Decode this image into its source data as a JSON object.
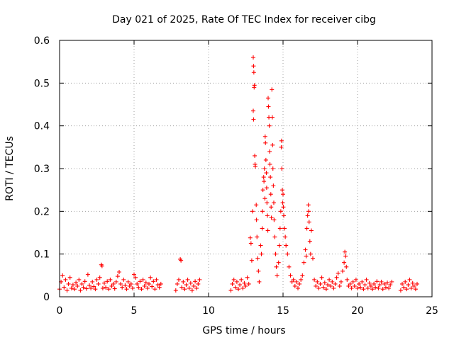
{
  "chart_data": {
    "type": "scatter",
    "title": "Day 021 of 2025, Rate Of TEC Index for receiver cibg",
    "xlabel": "GPS time / hours",
    "ylabel": "ROTI / TECUs",
    "xlim": [
      0,
      25
    ],
    "ylim": [
      0,
      0.6
    ],
    "xticks": [
      "0",
      "5",
      "10",
      "15",
      "20",
      "25"
    ],
    "yticks": [
      "0",
      "0.1",
      "0.2",
      "0.3",
      "0.4",
      "0.5",
      "0.6"
    ],
    "grid": true,
    "series": [
      {
        "name": "ROTI",
        "color": "#ff0000",
        "marker": "plus",
        "points": [
          [
            0.0,
            0.018
          ],
          [
            0.1,
            0.035
          ],
          [
            0.2,
            0.05
          ],
          [
            0.3,
            0.022
          ],
          [
            0.4,
            0.04
          ],
          [
            0.5,
            0.015
          ],
          [
            0.6,
            0.03
          ],
          [
            0.7,
            0.045
          ],
          [
            0.8,
            0.02
          ],
          [
            0.9,
            0.028
          ],
          [
            1.0,
            0.018
          ],
          [
            1.1,
            0.033
          ],
          [
            1.2,
            0.025
          ],
          [
            1.3,
            0.04
          ],
          [
            1.4,
            0.015
          ],
          [
            1.5,
            0.03
          ],
          [
            1.6,
            0.022
          ],
          [
            1.7,
            0.036
          ],
          [
            1.8,
            0.019
          ],
          [
            1.9,
            0.052
          ],
          [
            2.0,
            0.027
          ],
          [
            2.1,
            0.02
          ],
          [
            2.2,
            0.035
          ],
          [
            2.3,
            0.024
          ],
          [
            2.4,
            0.018
          ],
          [
            2.5,
            0.04
          ],
          [
            2.6,
            0.03
          ],
          [
            2.7,
            0.045
          ],
          [
            2.8,
            0.075
          ],
          [
            2.85,
            0.072
          ],
          [
            2.9,
            0.02
          ],
          [
            3.0,
            0.032
          ],
          [
            3.1,
            0.022
          ],
          [
            3.2,
            0.036
          ],
          [
            3.3,
            0.018
          ],
          [
            3.4,
            0.04
          ],
          [
            3.5,
            0.025
          ],
          [
            3.6,
            0.03
          ],
          [
            3.7,
            0.019
          ],
          [
            3.8,
            0.035
          ],
          [
            3.9,
            0.048
          ],
          [
            4.0,
            0.058
          ],
          [
            4.1,
            0.03
          ],
          [
            4.2,
            0.022
          ],
          [
            4.3,
            0.04
          ],
          [
            4.4,
            0.027
          ],
          [
            4.5,
            0.018
          ],
          [
            4.6,
            0.035
          ],
          [
            4.7,
            0.025
          ],
          [
            4.8,
            0.03
          ],
          [
            4.9,
            0.02
          ],
          [
            5.0,
            0.052
          ],
          [
            5.1,
            0.045
          ],
          [
            5.2,
            0.03
          ],
          [
            5.3,
            0.022
          ],
          [
            5.4,
            0.036
          ],
          [
            5.5,
            0.018
          ],
          [
            5.6,
            0.04
          ],
          [
            5.7,
            0.025
          ],
          [
            5.8,
            0.033
          ],
          [
            5.9,
            0.02
          ],
          [
            6.0,
            0.03
          ],
          [
            6.1,
            0.045
          ],
          [
            6.2,
            0.024
          ],
          [
            6.3,
            0.036
          ],
          [
            6.4,
            0.018
          ],
          [
            6.5,
            0.04
          ],
          [
            6.6,
            0.028
          ],
          [
            6.7,
            0.022
          ],
          [
            6.8,
            0.03
          ],
          [
            7.8,
            0.015
          ],
          [
            7.9,
            0.03
          ],
          [
            8.0,
            0.04
          ],
          [
            8.1,
            0.088
          ],
          [
            8.15,
            0.085
          ],
          [
            8.2,
            0.022
          ],
          [
            8.3,
            0.035
          ],
          [
            8.4,
            0.018
          ],
          [
            8.5,
            0.028
          ],
          [
            8.6,
            0.04
          ],
          [
            8.7,
            0.02
          ],
          [
            8.8,
            0.032
          ],
          [
            8.9,
            0.015
          ],
          [
            9.0,
            0.025
          ],
          [
            9.1,
            0.036
          ],
          [
            9.2,
            0.02
          ],
          [
            9.3,
            0.03
          ],
          [
            9.4,
            0.04
          ],
          [
            11.5,
            0.015
          ],
          [
            11.6,
            0.03
          ],
          [
            11.7,
            0.04
          ],
          [
            11.8,
            0.022
          ],
          [
            11.9,
            0.035
          ],
          [
            12.0,
            0.018
          ],
          [
            12.1,
            0.028
          ],
          [
            12.2,
            0.04
          ],
          [
            12.3,
            0.02
          ],
          [
            12.4,
            0.032
          ],
          [
            12.5,
            0.025
          ],
          [
            12.6,
            0.045
          ],
          [
            12.7,
            0.03
          ],
          [
            12.8,
            0.138
          ],
          [
            12.85,
            0.125
          ],
          [
            12.9,
            0.085
          ],
          [
            12.95,
            0.2
          ],
          [
            13.0,
            0.56
          ],
          [
            13.02,
            0.54
          ],
          [
            13.04,
            0.525
          ],
          [
            13.06,
            0.49
          ],
          [
            13.08,
            0.495
          ],
          [
            13.0,
            0.435
          ],
          [
            13.02,
            0.415
          ],
          [
            13.1,
            0.33
          ],
          [
            13.12,
            0.31
          ],
          [
            13.14,
            0.305
          ],
          [
            13.2,
            0.215
          ],
          [
            13.22,
            0.18
          ],
          [
            13.25,
            0.14
          ],
          [
            13.3,
            0.09
          ],
          [
            13.35,
            0.06
          ],
          [
            13.4,
            0.035
          ],
          [
            13.5,
            0.12
          ],
          [
            13.55,
            0.1
          ],
          [
            13.6,
            0.16
          ],
          [
            13.62,
            0.2
          ],
          [
            13.65,
            0.25
          ],
          [
            13.7,
            0.28
          ],
          [
            13.72,
            0.27
          ],
          [
            13.75,
            0.3
          ],
          [
            13.78,
            0.23
          ],
          [
            13.8,
            0.375
          ],
          [
            13.82,
            0.36
          ],
          [
            13.85,
            0.32
          ],
          [
            13.88,
            0.29
          ],
          [
            13.9,
            0.255
          ],
          [
            13.92,
            0.22
          ],
          [
            13.95,
            0.19
          ],
          [
            13.98,
            0.155
          ],
          [
            14.0,
            0.465
          ],
          [
            14.02,
            0.445
          ],
          [
            14.05,
            0.42
          ],
          [
            14.08,
            0.4
          ],
          [
            14.1,
            0.34
          ],
          [
            14.12,
            0.31
          ],
          [
            14.15,
            0.28
          ],
          [
            14.18,
            0.24
          ],
          [
            14.2,
            0.21
          ],
          [
            14.22,
            0.185
          ],
          [
            14.25,
            0.485
          ],
          [
            14.28,
            0.42
          ],
          [
            14.3,
            0.355
          ],
          [
            14.32,
            0.3
          ],
          [
            14.35,
            0.26
          ],
          [
            14.38,
            0.22
          ],
          [
            14.4,
            0.18
          ],
          [
            14.45,
            0.14
          ],
          [
            14.5,
            0.1
          ],
          [
            14.55,
            0.07
          ],
          [
            14.6,
            0.05
          ],
          [
            14.7,
            0.08
          ],
          [
            14.75,
            0.12
          ],
          [
            14.8,
            0.16
          ],
          [
            14.85,
            0.2
          ],
          [
            14.88,
            0.35
          ],
          [
            14.9,
            0.365
          ],
          [
            14.92,
            0.3
          ],
          [
            14.95,
            0.25
          ],
          [
            14.98,
            0.22
          ],
          [
            15.0,
            0.24
          ],
          [
            15.02,
            0.21
          ],
          [
            15.05,
            0.19
          ],
          [
            15.1,
            0.16
          ],
          [
            15.15,
            0.14
          ],
          [
            15.2,
            0.12
          ],
          [
            15.3,
            0.1
          ],
          [
            15.4,
            0.07
          ],
          [
            15.5,
            0.05
          ],
          [
            15.6,
            0.035
          ],
          [
            15.7,
            0.04
          ],
          [
            15.8,
            0.025
          ],
          [
            15.9,
            0.035
          ],
          [
            16.0,
            0.02
          ],
          [
            16.1,
            0.03
          ],
          [
            16.2,
            0.04
          ],
          [
            16.3,
            0.05
          ],
          [
            16.4,
            0.08
          ],
          [
            16.5,
            0.11
          ],
          [
            16.55,
            0.095
          ],
          [
            16.6,
            0.16
          ],
          [
            16.65,
            0.19
          ],
          [
            16.7,
            0.215
          ],
          [
            16.72,
            0.2
          ],
          [
            16.75,
            0.175
          ],
          [
            16.8,
            0.13
          ],
          [
            16.85,
            0.1
          ],
          [
            16.9,
            0.155
          ],
          [
            17.0,
            0.09
          ],
          [
            17.1,
            0.04
          ],
          [
            17.2,
            0.025
          ],
          [
            17.3,
            0.035
          ],
          [
            17.4,
            0.02
          ],
          [
            17.5,
            0.03
          ],
          [
            17.6,
            0.045
          ],
          [
            17.7,
            0.022
          ],
          [
            17.8,
            0.033
          ],
          [
            17.9,
            0.018
          ],
          [
            18.0,
            0.028
          ],
          [
            18.1,
            0.04
          ],
          [
            18.2,
            0.025
          ],
          [
            18.3,
            0.035
          ],
          [
            18.4,
            0.02
          ],
          [
            18.5,
            0.03
          ],
          [
            18.6,
            0.045
          ],
          [
            18.7,
            0.055
          ],
          [
            18.8,
            0.025
          ],
          [
            18.9,
            0.035
          ],
          [
            19.0,
            0.06
          ],
          [
            19.1,
            0.08
          ],
          [
            19.15,
            0.105
          ],
          [
            19.2,
            0.095
          ],
          [
            19.25,
            0.07
          ],
          [
            19.3,
            0.04
          ],
          [
            19.4,
            0.025
          ],
          [
            19.5,
            0.03
          ],
          [
            19.6,
            0.02
          ],
          [
            19.7,
            0.035
          ],
          [
            19.8,
            0.025
          ],
          [
            19.9,
            0.04
          ],
          [
            20.0,
            0.02
          ],
          [
            20.1,
            0.03
          ],
          [
            20.2,
            0.022
          ],
          [
            20.3,
            0.035
          ],
          [
            20.4,
            0.018
          ],
          [
            20.5,
            0.028
          ],
          [
            20.6,
            0.04
          ],
          [
            20.7,
            0.02
          ],
          [
            20.8,
            0.032
          ],
          [
            20.9,
            0.025
          ],
          [
            21.0,
            0.018
          ],
          [
            21.1,
            0.03
          ],
          [
            21.2,
            0.022
          ],
          [
            21.3,
            0.036
          ],
          [
            21.4,
            0.02
          ],
          [
            21.5,
            0.028
          ],
          [
            21.6,
            0.035
          ],
          [
            21.7,
            0.018
          ],
          [
            21.8,
            0.03
          ],
          [
            21.9,
            0.022
          ],
          [
            22.0,
            0.033
          ],
          [
            22.1,
            0.02
          ],
          [
            22.2,
            0.028
          ],
          [
            22.3,
            0.035
          ],
          [
            22.9,
            0.015
          ],
          [
            23.0,
            0.03
          ],
          [
            23.1,
            0.022
          ],
          [
            23.2,
            0.035
          ],
          [
            23.3,
            0.018
          ],
          [
            23.4,
            0.028
          ],
          [
            23.5,
            0.04
          ],
          [
            23.6,
            0.02
          ],
          [
            23.7,
            0.032
          ],
          [
            23.8,
            0.025
          ],
          [
            23.9,
            0.018
          ],
          [
            24.0,
            0.03
          ]
        ]
      }
    ]
  }
}
